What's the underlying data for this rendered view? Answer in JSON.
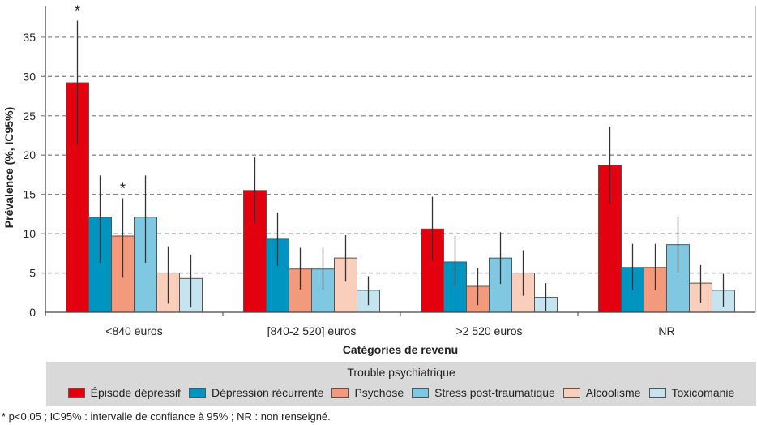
{
  "chart_data": {
    "type": "bar",
    "xlabel": "Catégories de revenu",
    "ylabel": "Prévalence (%, IC95%)",
    "ylim": [
      0,
      38
    ],
    "yticks": [
      0,
      5,
      10,
      15,
      20,
      25,
      30,
      35
    ],
    "grid": true,
    "legend_title": "Trouble psychiatrique",
    "legend_placement": "bottom",
    "categories": [
      "<840 euros",
      "[840-2 520] euros",
      ">2 520 euros",
      "NR"
    ],
    "series": [
      {
        "name": "Épisode dépressif",
        "color": "#e3000f",
        "values": [
          29.2,
          15.5,
          10.6,
          18.7
        ],
        "ci_low": [
          21.3,
          11.3,
          6.5,
          13.8
        ],
        "ci_high": [
          37.1,
          19.7,
          14.7,
          23.6
        ],
        "significant": [
          true,
          false,
          false,
          false
        ]
      },
      {
        "name": "Dépression récurrente",
        "color": "#0094c0",
        "values": [
          12.1,
          9.3,
          6.4,
          5.7
        ],
        "ci_low": [
          6.3,
          5.9,
          3.2,
          2.8
        ],
        "ci_high": [
          17.4,
          12.7,
          9.7,
          8.7
        ],
        "significant": [
          false,
          false,
          false,
          false
        ]
      },
      {
        "name": "Psychose",
        "color": "#f39a7c",
        "values": [
          9.7,
          5.5,
          3.3,
          5.7
        ],
        "ci_low": [
          4.4,
          2.9,
          0.9,
          2.8
        ],
        "ci_high": [
          14.5,
          8.2,
          5.6,
          8.7
        ],
        "significant": [
          true,
          false,
          false,
          false
        ]
      },
      {
        "name": "Stress post-traumatique",
        "color": "#80c8e2",
        "values": [
          12.1,
          5.5,
          6.9,
          8.6
        ],
        "ci_low": [
          6.3,
          2.9,
          3.6,
          5.0
        ],
        "ci_high": [
          17.4,
          8.2,
          10.2,
          12.1
        ],
        "significant": [
          false,
          false,
          false,
          false
        ]
      },
      {
        "name": "Alcoolisme",
        "color": "#f9cebb",
        "values": [
          5.0,
          6.9,
          5.0,
          3.7
        ],
        "ci_low": [
          1.1,
          3.9,
          2.1,
          1.2
        ],
        "ci_high": [
          8.4,
          9.8,
          7.9,
          6.0
        ],
        "significant": [
          false,
          false,
          false,
          false
        ]
      },
      {
        "name": "Toxicomanie",
        "color": "#c6e4f0",
        "values": [
          4.3,
          2.8,
          1.9,
          2.8
        ],
        "ci_low": [
          0.6,
          0.9,
          0.1,
          0.7
        ],
        "ci_high": [
          7.3,
          4.6,
          3.7,
          4.9
        ],
        "significant": [
          false,
          false,
          false,
          false
        ]
      }
    ],
    "significance_marker": "*"
  },
  "footnote": "* p<0,05 ; IC95% : intervalle de confiance à 95% ; NR : non renseigné."
}
